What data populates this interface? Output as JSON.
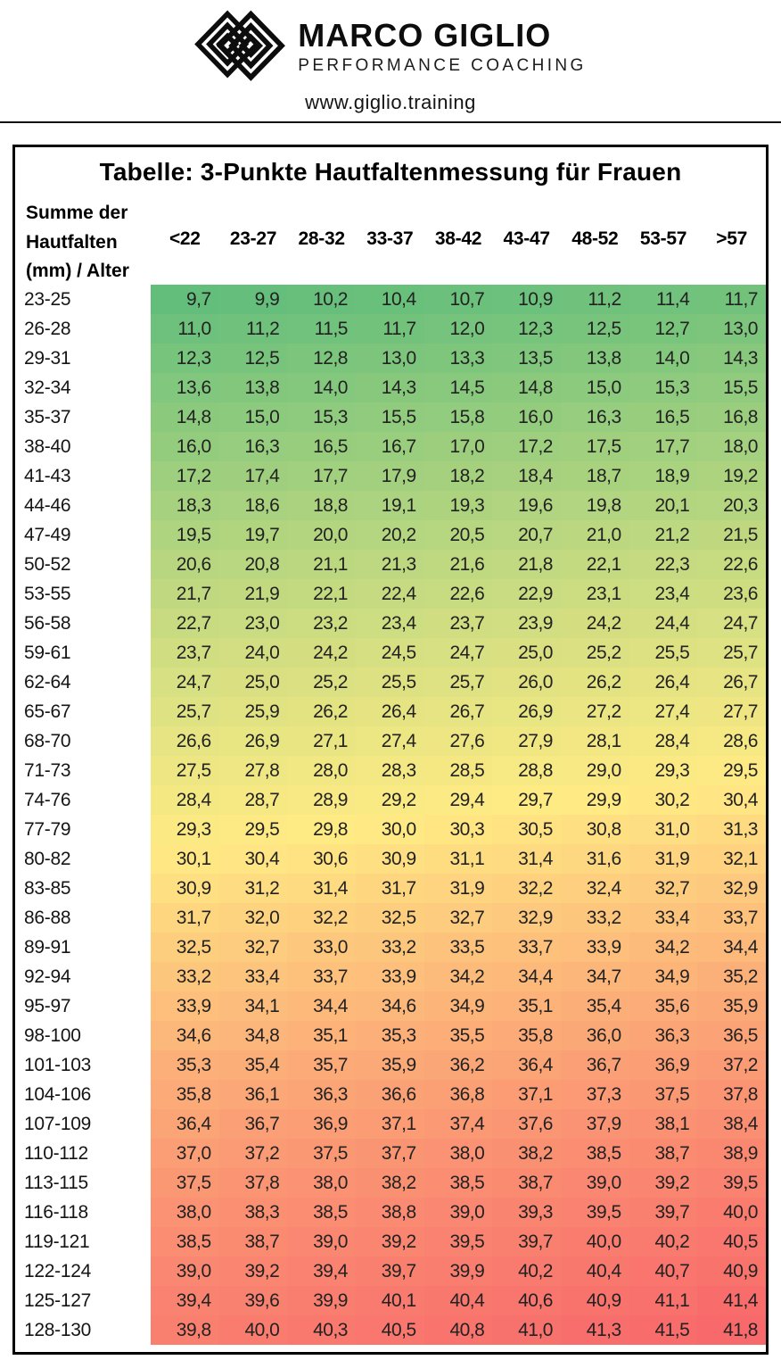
{
  "header": {
    "brand_name": "MARCO GIGLIO",
    "brand_subtitle": "PERFORMANCE COACHING",
    "website": "www.giglio.training"
  },
  "table": {
    "corner_label_lines": [
      "Summe der",
      "Hautfalten",
      "(mm) / Alter"
    ]
  },
  "chart_data": {
    "type": "heatmap",
    "title": "Tabelle: 3-Punkte Hautfaltenmessung für Frauen",
    "xlabel": "Alter",
    "ylabel": "Summe der Hautfalten (mm)",
    "legend_position": "none",
    "columns": [
      "<22",
      "23-27",
      "28-32",
      "33-37",
      "38-42",
      "43-47",
      "48-52",
      "53-57",
      ">57"
    ],
    "rows": [
      {
        "label": "23-25",
        "values": [
          9.7,
          9.9,
          10.2,
          10.4,
          10.7,
          10.9,
          11.2,
          11.4,
          11.7
        ]
      },
      {
        "label": "26-28",
        "values": [
          11.0,
          11.2,
          11.5,
          11.7,
          12.0,
          12.3,
          12.5,
          12.7,
          13.0
        ]
      },
      {
        "label": "29-31",
        "values": [
          12.3,
          12.5,
          12.8,
          13.0,
          13.3,
          13.5,
          13.8,
          14.0,
          14.3
        ]
      },
      {
        "label": "32-34",
        "values": [
          13.6,
          13.8,
          14.0,
          14.3,
          14.5,
          14.8,
          15.0,
          15.3,
          15.5
        ]
      },
      {
        "label": "35-37",
        "values": [
          14.8,
          15.0,
          15.3,
          15.5,
          15.8,
          16.0,
          16.3,
          16.5,
          16.8
        ]
      },
      {
        "label": "38-40",
        "values": [
          16.0,
          16.3,
          16.5,
          16.7,
          17.0,
          17.2,
          17.5,
          17.7,
          18.0
        ]
      },
      {
        "label": "41-43",
        "values": [
          17.2,
          17.4,
          17.7,
          17.9,
          18.2,
          18.4,
          18.7,
          18.9,
          19.2
        ]
      },
      {
        "label": "44-46",
        "values": [
          18.3,
          18.6,
          18.8,
          19.1,
          19.3,
          19.6,
          19.8,
          20.1,
          20.3
        ]
      },
      {
        "label": "47-49",
        "values": [
          19.5,
          19.7,
          20.0,
          20.2,
          20.5,
          20.7,
          21.0,
          21.2,
          21.5
        ]
      },
      {
        "label": "50-52",
        "values": [
          20.6,
          20.8,
          21.1,
          21.3,
          21.6,
          21.8,
          22.1,
          22.3,
          22.6
        ]
      },
      {
        "label": "53-55",
        "values": [
          21.7,
          21.9,
          22.1,
          22.4,
          22.6,
          22.9,
          23.1,
          23.4,
          23.6
        ]
      },
      {
        "label": "56-58",
        "values": [
          22.7,
          23.0,
          23.2,
          23.4,
          23.7,
          23.9,
          24.2,
          24.4,
          24.7
        ]
      },
      {
        "label": "59-61",
        "values": [
          23.7,
          24.0,
          24.2,
          24.5,
          24.7,
          25.0,
          25.2,
          25.5,
          25.7
        ]
      },
      {
        "label": "62-64",
        "values": [
          24.7,
          25.0,
          25.2,
          25.5,
          25.7,
          26.0,
          26.2,
          26.4,
          26.7
        ]
      },
      {
        "label": "65-67",
        "values": [
          25.7,
          25.9,
          26.2,
          26.4,
          26.7,
          26.9,
          27.2,
          27.4,
          27.7
        ]
      },
      {
        "label": "68-70",
        "values": [
          26.6,
          26.9,
          27.1,
          27.4,
          27.6,
          27.9,
          28.1,
          28.4,
          28.6
        ]
      },
      {
        "label": "71-73",
        "values": [
          27.5,
          27.8,
          28.0,
          28.3,
          28.5,
          28.8,
          29.0,
          29.3,
          29.5
        ]
      },
      {
        "label": "74-76",
        "values": [
          28.4,
          28.7,
          28.9,
          29.2,
          29.4,
          29.7,
          29.9,
          30.2,
          30.4
        ]
      },
      {
        "label": "77-79",
        "values": [
          29.3,
          29.5,
          29.8,
          30.0,
          30.3,
          30.5,
          30.8,
          31.0,
          31.3
        ]
      },
      {
        "label": "80-82",
        "values": [
          30.1,
          30.4,
          30.6,
          30.9,
          31.1,
          31.4,
          31.6,
          31.9,
          32.1
        ]
      },
      {
        "label": "83-85",
        "values": [
          30.9,
          31.2,
          31.4,
          31.7,
          31.9,
          32.2,
          32.4,
          32.7,
          32.9
        ]
      },
      {
        "label": "86-88",
        "values": [
          31.7,
          32.0,
          32.2,
          32.5,
          32.7,
          32.9,
          33.2,
          33.4,
          33.7
        ]
      },
      {
        "label": "89-91",
        "values": [
          32.5,
          32.7,
          33.0,
          33.2,
          33.5,
          33.7,
          33.9,
          34.2,
          34.4
        ]
      },
      {
        "label": "92-94",
        "values": [
          33.2,
          33.4,
          33.7,
          33.9,
          34.2,
          34.4,
          34.7,
          34.9,
          35.2
        ]
      },
      {
        "label": "95-97",
        "values": [
          33.9,
          34.1,
          34.4,
          34.6,
          34.9,
          35.1,
          35.4,
          35.6,
          35.9
        ]
      },
      {
        "label": "98-100",
        "values": [
          34.6,
          34.8,
          35.1,
          35.3,
          35.5,
          35.8,
          36.0,
          36.3,
          36.5
        ]
      },
      {
        "label": "101-103",
        "values": [
          35.3,
          35.4,
          35.7,
          35.9,
          36.2,
          36.4,
          36.7,
          36.9,
          37.2
        ]
      },
      {
        "label": "104-106",
        "values": [
          35.8,
          36.1,
          36.3,
          36.6,
          36.8,
          37.1,
          37.3,
          37.5,
          37.8
        ]
      },
      {
        "label": "107-109",
        "values": [
          36.4,
          36.7,
          36.9,
          37.1,
          37.4,
          37.6,
          37.9,
          38.1,
          38.4
        ]
      },
      {
        "label": "110-112",
        "values": [
          37.0,
          37.2,
          37.5,
          37.7,
          38.0,
          38.2,
          38.5,
          38.7,
          38.9
        ]
      },
      {
        "label": "113-115",
        "values": [
          37.5,
          37.8,
          38.0,
          38.2,
          38.5,
          38.7,
          39.0,
          39.2,
          39.5
        ]
      },
      {
        "label": "116-118",
        "values": [
          38.0,
          38.3,
          38.5,
          38.8,
          39.0,
          39.3,
          39.5,
          39.7,
          40.0
        ]
      },
      {
        "label": "119-121",
        "values": [
          38.5,
          38.7,
          39.0,
          39.2,
          39.5,
          39.7,
          40.0,
          40.2,
          40.5
        ]
      },
      {
        "label": "122-124",
        "values": [
          39.0,
          39.2,
          39.4,
          39.7,
          39.9,
          40.2,
          40.4,
          40.7,
          40.9
        ]
      },
      {
        "label": "125-127",
        "values": [
          39.4,
          39.6,
          39.9,
          40.1,
          40.4,
          40.6,
          40.9,
          41.1,
          41.4
        ]
      },
      {
        "label": "128-130",
        "values": [
          39.8,
          40.0,
          40.3,
          40.5,
          40.8,
          41.0,
          41.3,
          41.5,
          41.8
        ]
      }
    ],
    "value_format": "comma-decimal, 1 fraction digit",
    "color_scale": {
      "min_value": 9.7,
      "min_color": "#63BE7B",
      "mid_value": 29.8,
      "mid_color": "#FFEB84",
      "max_value": 41.8,
      "max_color": "#F8696B"
    }
  }
}
